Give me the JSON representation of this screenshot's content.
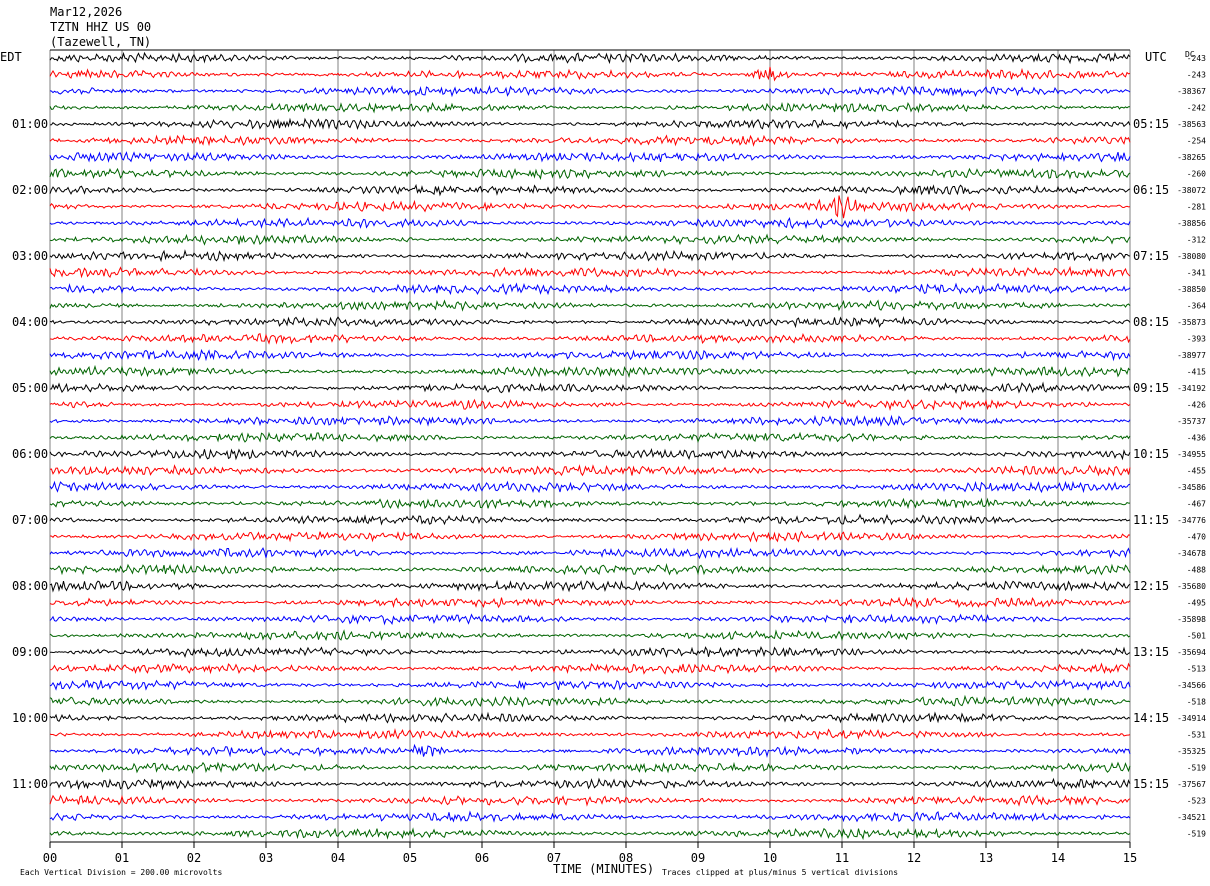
{
  "header": {
    "date": "Mar12,2026",
    "station": "TZTN HHZ US 00",
    "location": "(Tazewell, TN)",
    "left_tz": "EDT",
    "right_tz": "UTC",
    "dc_label": "DC"
  },
  "footer": {
    "scale_note": "Each Vertical Division =  200.00 microvolts",
    "clip_note": "Traces clipped at plus/minus 5 vertical divisions",
    "xlabel": "TIME (MINUTES)"
  },
  "colors": {
    "black": "#000000",
    "red": "#ff0000",
    "blue": "#0000ff",
    "green": "#006400",
    "grid": "#808080"
  },
  "chart_data": {
    "type": "line",
    "title": "TZTN HHZ US 00",
    "xlabel": "TIME (MINUTES)",
    "xlim": [
      0,
      15
    ],
    "x_ticks": [
      "00",
      "01",
      "02",
      "03",
      "04",
      "05",
      "06",
      "07",
      "08",
      "09",
      "10",
      "11",
      "12",
      "13",
      "14",
      "15"
    ],
    "trace_count": 48,
    "trace_color_cycle": [
      "black",
      "red",
      "blue",
      "green"
    ],
    "left_hour_labels": [
      "01:00",
      "02:00",
      "03:00",
      "04:00",
      "05:00",
      "06:00",
      "07:00",
      "08:00",
      "09:00",
      "10:00",
      "11:00"
    ],
    "right_hour_labels": [
      "05:15",
      "06:15",
      "07:15",
      "08:15",
      "09:15",
      "10:15",
      "11:15",
      "12:15",
      "13:15",
      "14:15",
      "15:15"
    ],
    "dc_offsets": [
      "-243",
      "-243",
      "-38367",
      "-242",
      "-38563",
      "-254",
      "-38265",
      "-260",
      "-38072",
      "-281",
      "-38856",
      "-312",
      "-38080",
      "-341",
      "-38850",
      "-364",
      "-35873",
      "-393",
      "-38977",
      "-415",
      "-34192",
      "-426",
      "-35737",
      "-436",
      "-34955",
      "-455",
      "-34586",
      "-467",
      "-34776",
      "-470",
      "-34678",
      "-488",
      "-35680",
      "-495",
      "-35898",
      "-501",
      "-35694",
      "-513",
      "-34566",
      "-518",
      "-34914",
      "-531",
      "-35325",
      "-519",
      "-37567",
      "-523",
      "-34521",
      "-519"
    ],
    "events": [
      {
        "trace": 1,
        "minute": 10.0,
        "amplitude": "high"
      },
      {
        "trace": 9,
        "minute": 11.0,
        "amplitude": "high"
      },
      {
        "trace": 42,
        "minute": 5.2,
        "amplitude": "medium"
      }
    ]
  }
}
